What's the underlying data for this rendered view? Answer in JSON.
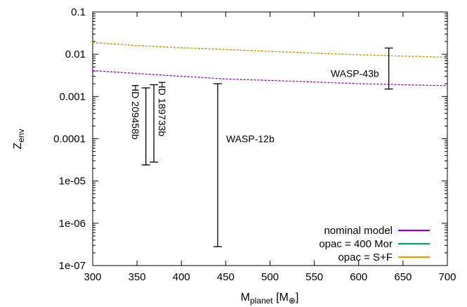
{
  "chart_data": {
    "type": "line",
    "xlabel": {
      "main": "M",
      "sub": "planet",
      "unit_open": " [M",
      "unit_sub": "⊕",
      "unit_close": "]"
    },
    "ylabel": {
      "main": "Z",
      "sub": "env"
    },
    "xlim": [
      300,
      700
    ],
    "ylim": [
      1e-07,
      0.1
    ],
    "yscale": "log",
    "grid": false,
    "legend_position": "bottom-right",
    "x_ticks": [
      300,
      350,
      400,
      450,
      500,
      550,
      600,
      650,
      700
    ],
    "x_tick_labels": [
      "300",
      "350",
      "400",
      "450",
      "500",
      "550",
      "600",
      "650",
      "700"
    ],
    "y_ticks": [
      1e-07,
      1e-06,
      1e-05,
      0.0001,
      0.001,
      0.01,
      0.1
    ],
    "y_tick_labels": [
      "1e-07",
      "1e-06",
      "1e-05",
      "0.0001",
      "0.001",
      "0.01",
      "0.1"
    ],
    "series": [
      {
        "name": "nominal model",
        "color": "#9400D3",
        "x": [
          300,
          350,
          400,
          450,
          500,
          550,
          600,
          650,
          700
        ],
        "y": [
          0.0041,
          0.0035,
          0.003,
          0.0026,
          0.0024,
          0.0022,
          0.002,
          0.0019,
          0.0018
        ]
      },
      {
        "name": "opac = 400 Mor",
        "color": "#009E73",
        "x": [
          300,
          350,
          400,
          450,
          500,
          550,
          600,
          650,
          700
        ],
        "y": [
          0.019,
          0.016,
          0.0142,
          0.0129,
          0.0117,
          0.0106,
          0.0097,
          0.009,
          0.0085
        ]
      },
      {
        "name": "opac = S+F",
        "color": "#E69F00",
        "x": [
          300,
          350,
          400,
          450,
          500,
          550,
          600,
          650,
          700
        ],
        "y": [
          0.019,
          0.016,
          0.0142,
          0.0129,
          0.0117,
          0.0106,
          0.0097,
          0.009,
          0.0085
        ]
      }
    ],
    "error_bars": [
      {
        "label": "HD 209458b",
        "x": 360,
        "ymin": 2.4e-05,
        "ymax": 0.0016,
        "label_rotate": 90,
        "label_side": "left"
      },
      {
        "label": "HD 189733b",
        "x": 369,
        "ymin": 2.8e-05,
        "ymax": 0.0019,
        "label_rotate": 90,
        "label_side": "right"
      },
      {
        "label": "WASP-12b",
        "x": 441,
        "ymin": 2.8e-07,
        "ymax": 0.002,
        "label_rotate": 0,
        "label_side": "right"
      },
      {
        "label": "WASP-43b",
        "x": 634,
        "ymin": 0.0015,
        "ymax": 0.014,
        "label_rotate": 0,
        "label_side": "left"
      }
    ]
  }
}
